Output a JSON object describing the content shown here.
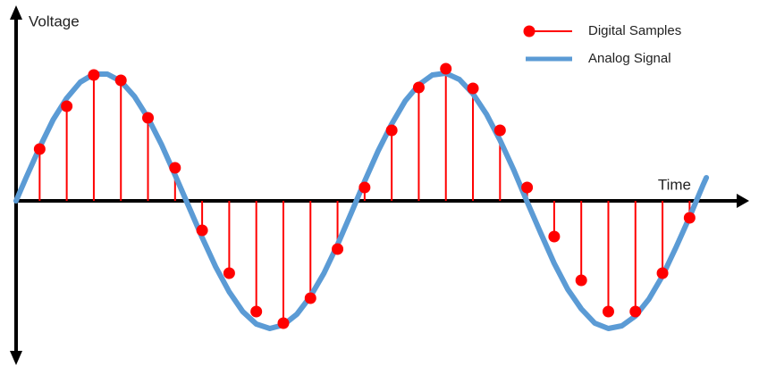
{
  "chart_data": {
    "type": "stem",
    "xlabel": "Time",
    "ylabel": "Voltage",
    "xlim": [
      0.13,
      27.2
    ],
    "ylim": [
      -1.8,
      2.15
    ],
    "legend": "upper right",
    "series": [
      {
        "name": "Digital Samples",
        "color": "#ff0000",
        "kind": "stem",
        "x": [
          1,
          2,
          3,
          4,
          5,
          6,
          7,
          8,
          9,
          10,
          11,
          12,
          13,
          14,
          15,
          16,
          17,
          18,
          19,
          20,
          21,
          22,
          23,
          24,
          25
        ],
        "values": [
          0.58,
          1.06,
          1.41,
          1.35,
          0.93,
          0.37,
          -0.33,
          -0.81,
          -1.24,
          -1.37,
          -1.09,
          -0.54,
          0.15,
          0.79,
          1.27,
          1.48,
          1.26,
          0.79,
          0.15,
          -0.4,
          -0.89,
          -1.24,
          -1.24,
          -0.81,
          -0.19
        ]
      },
      {
        "name": "Analog Signal",
        "color": "#5b9bd5",
        "kind": "line",
        "x": [
          0.13,
          0.5,
          1,
          1.5,
          2,
          2.5,
          3,
          3.5,
          4,
          4.5,
          5,
          5.5,
          6,
          6.5,
          7,
          7.5,
          8,
          8.5,
          9,
          9.5,
          10,
          10.5,
          11,
          11.5,
          12,
          12.5,
          13,
          13.5,
          14,
          14.5,
          15,
          15.5,
          16,
          16.5,
          17,
          17.5,
          18,
          18.5,
          19,
          19.5,
          20,
          20.5,
          21,
          21.5,
          22,
          22.5,
          23,
          23.5,
          24,
          24.5,
          25,
          25.5,
          25.62
        ],
        "values": [
          0,
          0.26,
          0.6,
          0.91,
          1.15,
          1.33,
          1.42,
          1.42,
          1.34,
          1.17,
          0.93,
          0.63,
          0.29,
          -0.06,
          -0.41,
          -0.74,
          -1.02,
          -1.24,
          -1.38,
          -1.43,
          -1.39,
          -1.27,
          -1.07,
          -0.81,
          -0.49,
          -0.14,
          0.22,
          0.56,
          0.86,
          1.12,
          1.3,
          1.41,
          1.43,
          1.36,
          1.2,
          0.97,
          0.68,
          0.35,
          -0.01,
          -0.36,
          -0.7,
          -0.99,
          -1.21,
          -1.37,
          -1.43,
          -1.4,
          -1.29,
          -1.1,
          -0.84,
          -0.52,
          -0.18,
          0.18,
          0.26
        ]
      }
    ]
  }
}
